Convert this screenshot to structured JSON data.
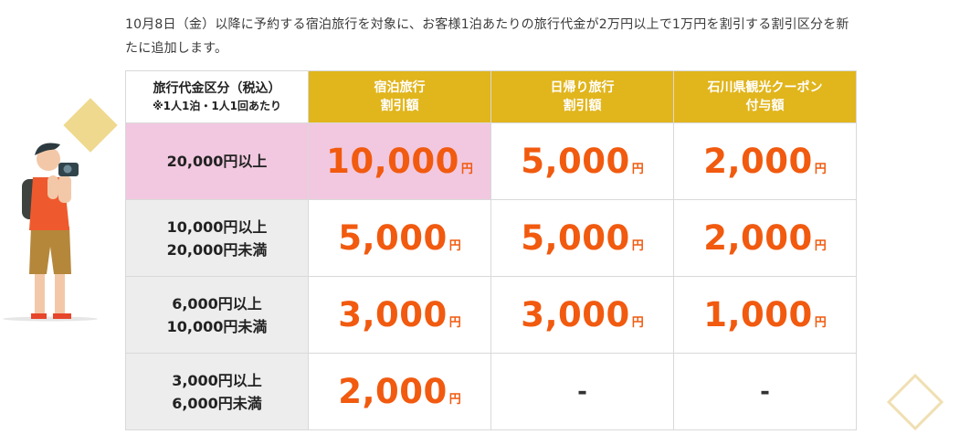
{
  "intro_text": "10月8日（金）以降に予約する宿泊旅行を対象に、お客様1泊あたりの旅行代金が2万円以上で1万円を割引する割引区分を新たに追加します。",
  "table": {
    "corner_title": "旅行代金区分（税込）",
    "corner_sub": "※1人1泊・1人1回あたり",
    "columns": [
      {
        "line1": "宿泊旅行",
        "line2": "割引額"
      },
      {
        "line1": "日帰り旅行",
        "line2": "割引額"
      },
      {
        "line1": "石川県観光クーポン",
        "line2": "付与額"
      }
    ],
    "yen_unit": "円",
    "dash": "-",
    "rows": [
      {
        "line1": "20,000円以上",
        "line2": "",
        "stay": "10,000",
        "day": "5,000",
        "coupon": "2,000"
      },
      {
        "line1": "10,000円以上",
        "line2": "20,000円未満",
        "stay": "5,000",
        "day": "5,000",
        "coupon": "2,000"
      },
      {
        "line1": "6,000円以上",
        "line2": "10,000円未満",
        "stay": "3,000",
        "day": "3,000",
        "coupon": "1,000"
      },
      {
        "line1": "3,000円以上",
        "line2": "6,000円未満",
        "stay": "2,000",
        "day": "-",
        "coupon": "-"
      }
    ]
  },
  "colors": {
    "header_gold": "#e1b51c",
    "highlight_pink": "#f1c8df",
    "amount_orange": "#f15a0f",
    "row_head_gray": "#ededed"
  }
}
